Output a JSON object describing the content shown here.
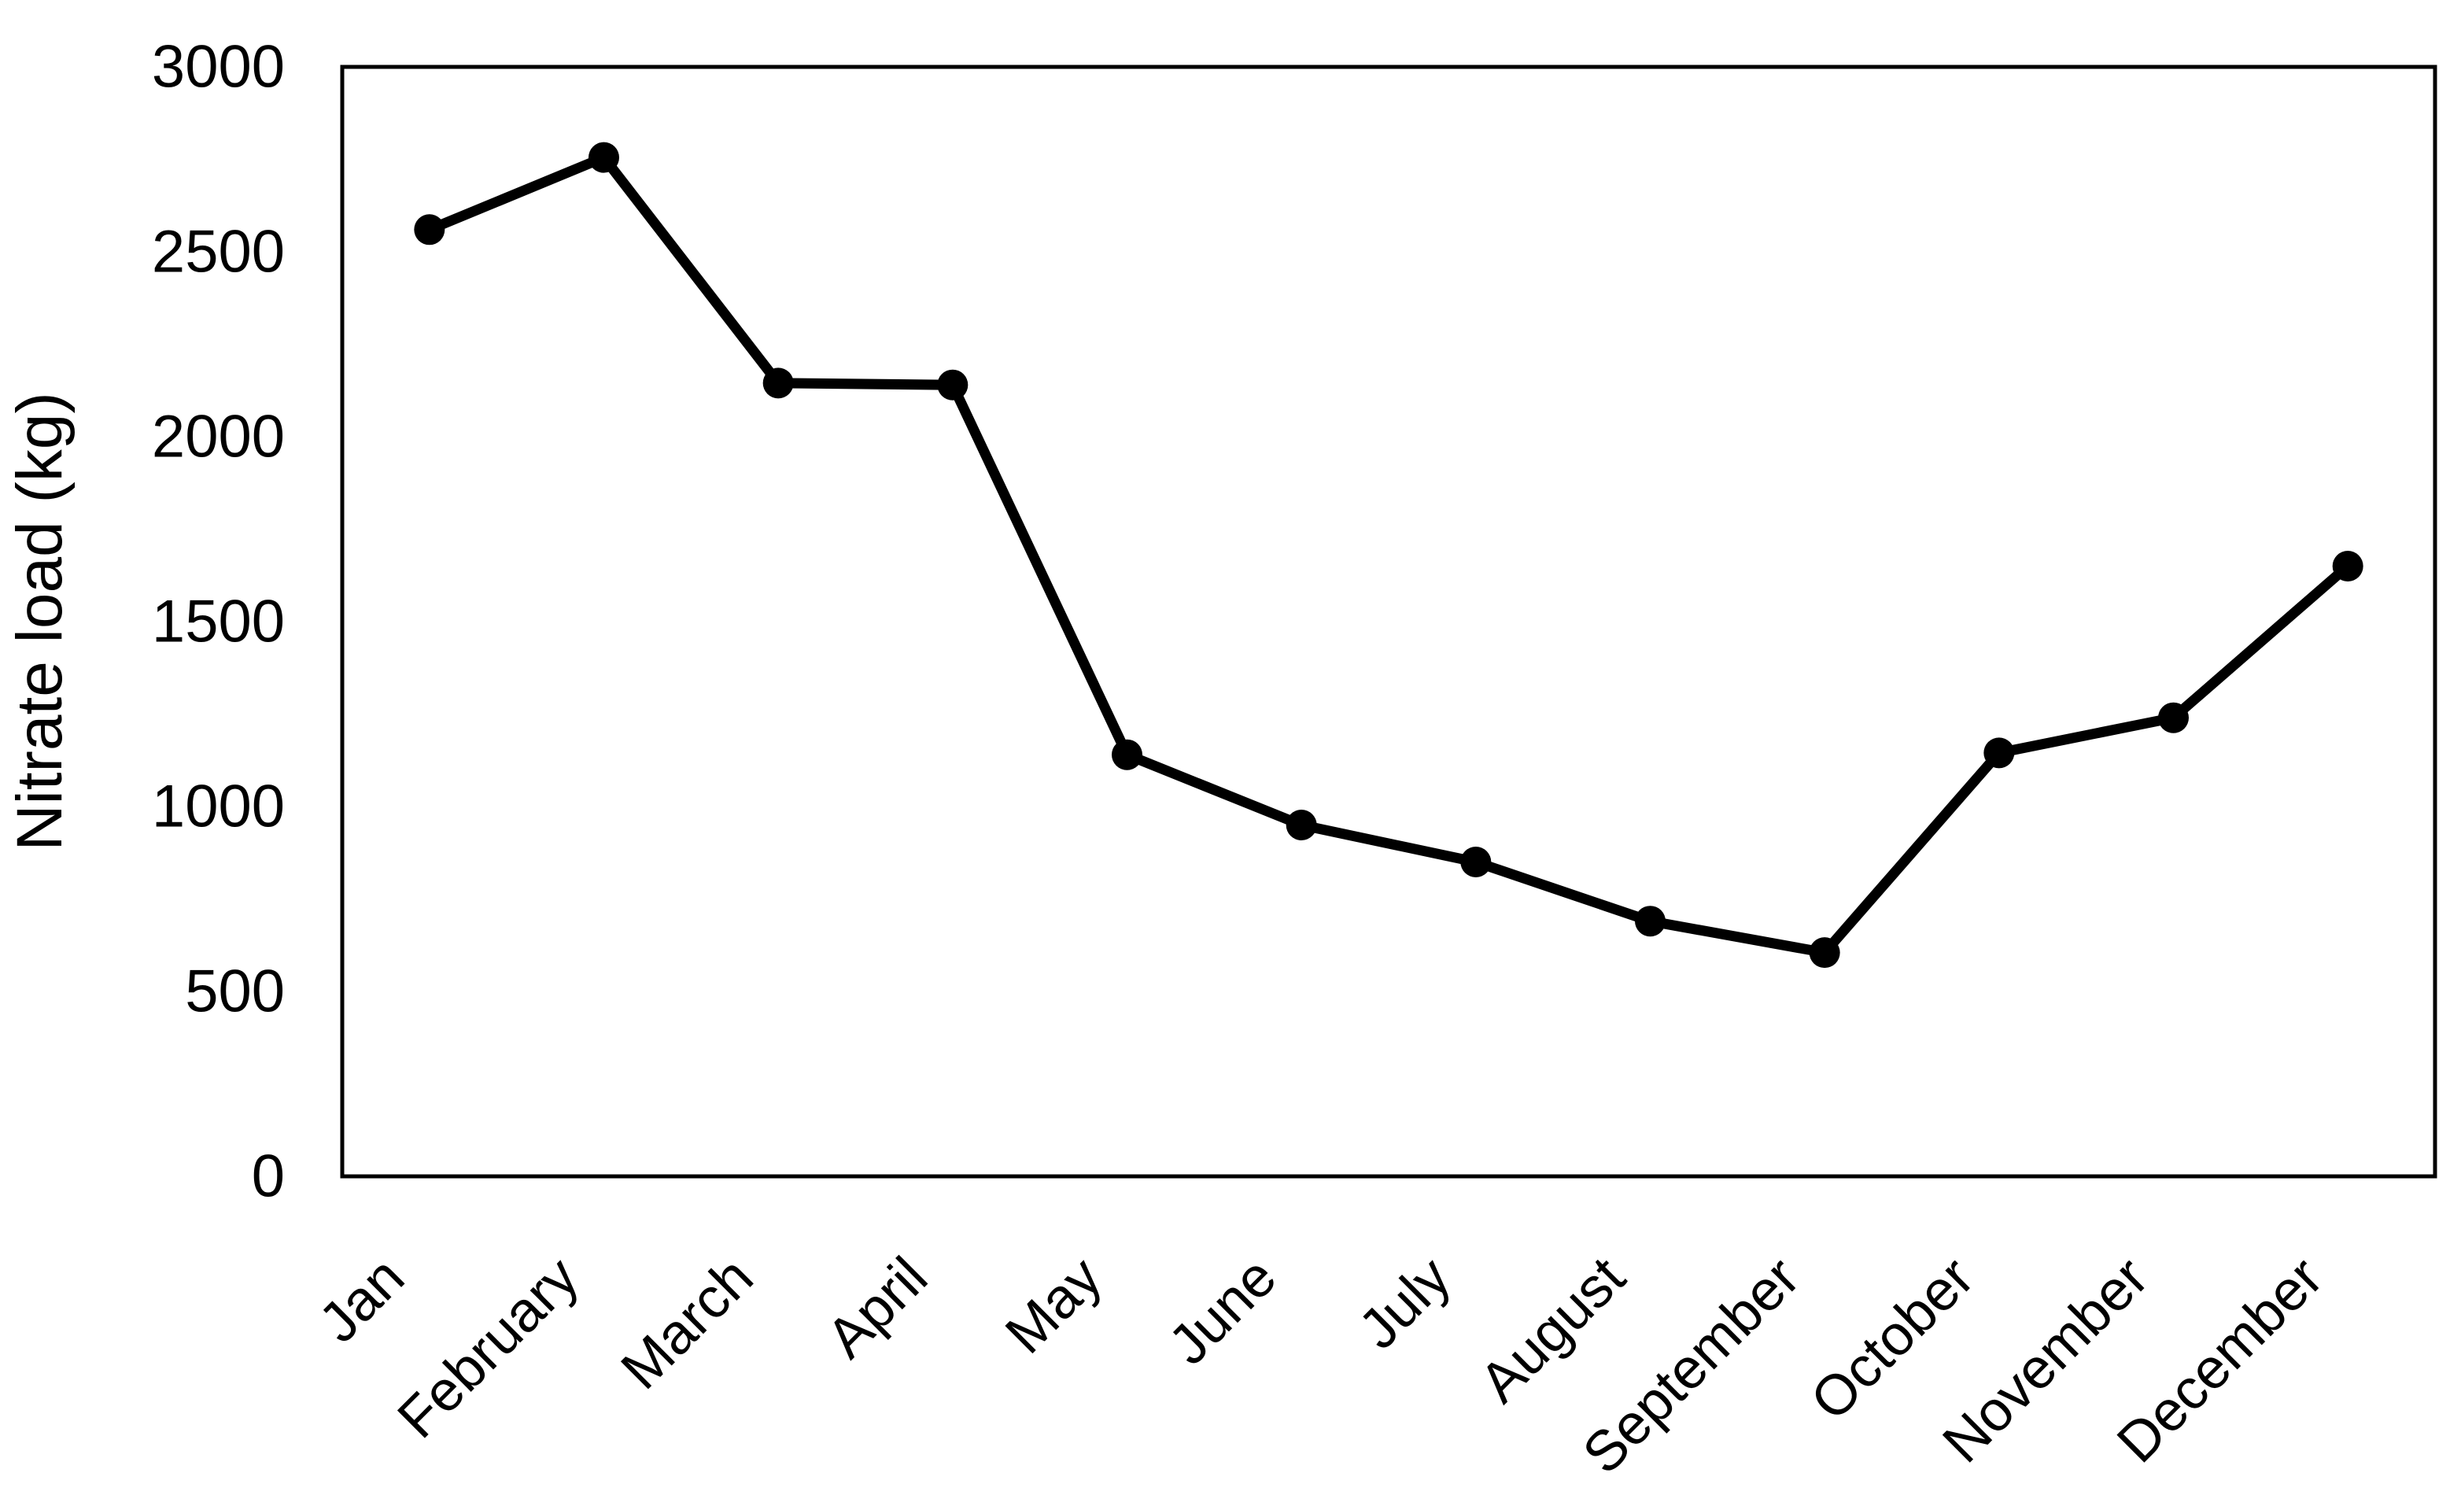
{
  "chart_data": {
    "type": "line",
    "title": "",
    "xlabel": "",
    "ylabel": "Nitrate load (kg)",
    "categories": [
      "Jan",
      "February",
      "March",
      "April",
      "May",
      "June",
      "July",
      "August",
      "September",
      "October",
      "November",
      "December"
    ],
    "series": [
      {
        "name": "Nitrate load (kg)",
        "values": [
          2560,
          2755,
          2145,
          2140,
          1140,
          950,
          850,
          690,
          605,
          1145,
          1240,
          1650
        ]
      }
    ],
    "ylim": [
      0,
      3000
    ],
    "yticks": [
      0,
      500,
      1000,
      1500,
      2000,
      2500,
      3000
    ],
    "grid": false,
    "legend_position": "none",
    "line_color": "#000000",
    "marker": "filled-circle",
    "background_color": "#ffffff",
    "plot_border": true,
    "x_label_rotation_deg": -45
  }
}
